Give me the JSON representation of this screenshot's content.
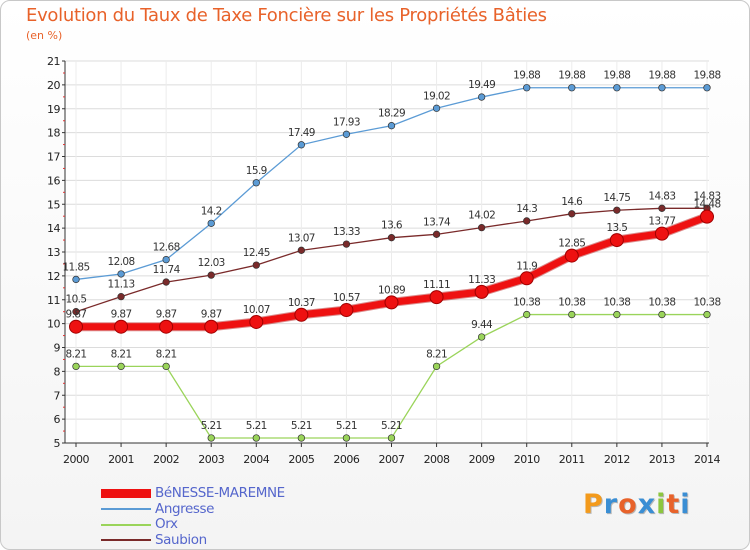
{
  "header": {
    "title": "Evolution du Taux de Taxe Foncière sur les Propriétés Bâties",
    "subtitle": "(en %)"
  },
  "logo": {
    "letters": [
      "P",
      "r",
      "o",
      "x",
      "i",
      "t",
      "i"
    ],
    "colors": [
      "#f39a1c",
      "#3a8ed4",
      "#e8622a",
      "#3a8ed4",
      "#8cc63f",
      "#e8622a",
      "#3a8ed4"
    ]
  },
  "chart_data": {
    "type": "line",
    "title": "Evolution du Taux de Taxe Foncière sur les Propriétés Bâties",
    "ylabel": "(en %)",
    "xlabel": "",
    "ylim": [
      5,
      21
    ],
    "yticks": [
      "5",
      "6",
      "7",
      "8",
      "9",
      "10",
      "11",
      "12",
      "13",
      "14",
      "15",
      "16",
      "17",
      "18",
      "19",
      "20",
      "21"
    ],
    "categories": [
      "2000",
      "2001",
      "2002",
      "2003",
      "2004",
      "2005",
      "2006",
      "2007",
      "2008",
      "2009",
      "2010",
      "2011",
      "2012",
      "2013",
      "2014"
    ],
    "grid": true,
    "series": [
      {
        "name": "Saubion",
        "color": "#7a2a2a",
        "highlight": false,
        "values": [
          10.5,
          11.13,
          11.74,
          12.03,
          12.45,
          13.07,
          13.33,
          13.6,
          13.74,
          14.02,
          14.3,
          14.6,
          14.75,
          14.83,
          14.83
        ],
        "labels": [
          "10.5",
          "11.13",
          "11.74",
          "12.03",
          "12.45",
          "13.07",
          "13.33",
          "13.6",
          "13.74",
          "14.02",
          "14.3",
          "14.6",
          "14.75",
          "14.83",
          "14.83"
        ]
      },
      {
        "name": "Angresse",
        "color": "#5b9bd5",
        "highlight": false,
        "values": [
          11.85,
          12.08,
          12.68,
          14.2,
          15.9,
          17.49,
          17.93,
          18.29,
          19.02,
          19.49,
          19.88,
          19.88,
          19.88,
          19.88,
          19.88
        ],
        "labels": [
          "11.85",
          "12.08",
          "12.68",
          "14.2",
          "15.9",
          "17.49",
          "17.93",
          "18.29",
          "19.02",
          "19.49",
          "19.88",
          "19.88",
          "19.88",
          "19.88",
          "19.88"
        ]
      },
      {
        "name": "Orx",
        "color": "#9ad45a",
        "highlight": false,
        "values": [
          8.21,
          8.21,
          8.21,
          5.21,
          5.21,
          5.21,
          5.21,
          5.21,
          8.21,
          9.44,
          10.38,
          10.38,
          10.38,
          10.38,
          10.38
        ],
        "labels": [
          "8.21",
          "8.21",
          "8.21",
          "5.21",
          "5.21",
          "5.21",
          "5.21",
          "5.21",
          "8.21",
          "9.44",
          "10.38",
          "10.38",
          "10.38",
          "10.38",
          "10.38"
        ]
      },
      {
        "name": "BéNESSE-MAREMNE",
        "color": "#ee1111",
        "highlight": true,
        "values": [
          9.87,
          9.87,
          9.87,
          9.87,
          10.07,
          10.37,
          10.57,
          10.89,
          11.11,
          11.33,
          11.9,
          12.85,
          13.5,
          13.77,
          14.48
        ],
        "labels": [
          "9.87",
          "9.87",
          "9.87",
          "9.87",
          "10.07",
          "10.37",
          "10.57",
          "10.89",
          "11.11",
          "11.33",
          "11.9",
          "12.85",
          "13.5",
          "13.77",
          "14.48"
        ]
      }
    ],
    "legend": [
      "BéNESSE-MAREMNE",
      "Angresse",
      "Orx",
      "Saubion"
    ]
  }
}
